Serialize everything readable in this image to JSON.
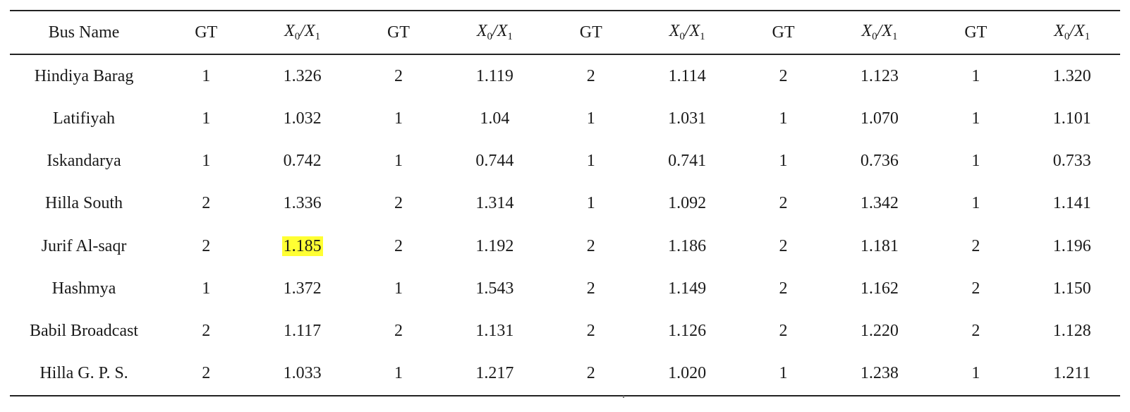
{
  "header": {
    "bus_name": "Bus Name",
    "gt": "GT",
    "ratio": {
      "X": "X",
      "sub0": "0",
      "slash": "/",
      "sub1": "1"
    }
  },
  "rows": [
    {
      "name": "Hindiya Barag",
      "cells": [
        "1",
        "1.326",
        "2",
        "1.119",
        "2",
        "1.114",
        "2",
        "1.123",
        "1",
        "1.320"
      ]
    },
    {
      "name": "Latifiyah",
      "cells": [
        "1",
        "1.032",
        "1",
        "1.04",
        "1",
        "1.031",
        "1",
        "1.070",
        "1",
        "1.101"
      ]
    },
    {
      "name": "Iskandarya",
      "cells": [
        "1",
        "0.742",
        "1",
        "0.744",
        "1",
        "0.741",
        "1",
        "0.736",
        "1",
        "0.733"
      ]
    },
    {
      "name": "Hilla South",
      "cells": [
        "2",
        "1.336",
        "2",
        "1.314",
        "1",
        "1.092",
        "2",
        "1.342",
        "1",
        "1.141"
      ]
    },
    {
      "name": "Jurif Al-saqr",
      "cells": [
        "2",
        "1.185",
        "2",
        "1.192",
        "2",
        "1.186",
        "2",
        "1.181",
        "2",
        "1.196"
      ]
    },
    {
      "name": "Hashmya",
      "cells": [
        "1",
        "1.372",
        "1",
        "1.543",
        "2",
        "1.149",
        "2",
        "1.162",
        "2",
        "1.150"
      ]
    },
    {
      "name": "Babil Broadcast",
      "cells": [
        "2",
        "1.117",
        "2",
        "1.131",
        "2",
        "1.126",
        "2",
        "1.220",
        "2",
        "1.128"
      ]
    },
    {
      "name": "Hilla G. P. S.",
      "cells": [
        "2",
        "1.033",
        "1",
        "1.217",
        "2",
        "1.020",
        "1",
        "1.238",
        "1",
        "1.211"
      ]
    }
  ],
  "highlight": {
    "row": 4,
    "col": 1,
    "color": "#ffff33"
  }
}
